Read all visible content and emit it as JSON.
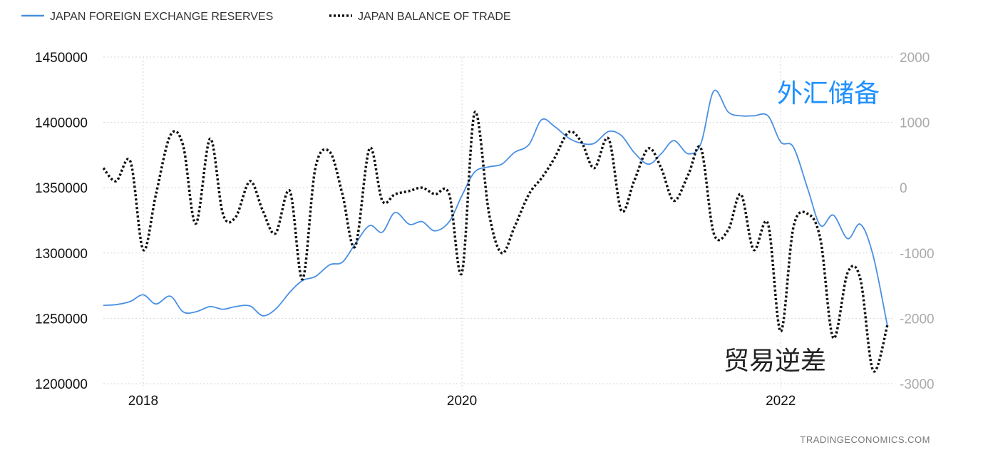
{
  "chart_data": {
    "type": "line",
    "legend": {
      "placement": "top-left",
      "entries": [
        "JAPAN FOREIGN EXCHANGE RESERVES",
        "JAPAN BALANCE OF TRADE"
      ]
    },
    "y_left": {
      "ticks": [
        "1450000",
        "1400000",
        "1350000",
        "1300000",
        "1250000",
        "1200000"
      ],
      "range": [
        1200000,
        1450000
      ]
    },
    "y_right": {
      "ticks": [
        "2000",
        "1000",
        "0",
        "-1000",
        "-2000",
        "-3000"
      ],
      "range": [
        -3000,
        2000
      ]
    },
    "x_ticks": [
      "2018",
      "2020",
      "2022"
    ],
    "x_range": [
      2017.75,
      2022.67
    ],
    "grid": true,
    "annotations": {
      "reserves": "外汇储备",
      "trade": "贸易逆差"
    },
    "source": "TRADINGECONOMICS.COM",
    "colors": {
      "reserves": "#4a90e2",
      "trade": "#111111",
      "annot_reserves": "#1e90ff",
      "annot_trade": "#222222"
    },
    "series": [
      {
        "name": "JAPAN FOREIGN EXCHANGE RESERVES",
        "axis": "left",
        "x": [
          2017.75,
          2017.83,
          2017.92,
          2018.0,
          2018.08,
          2018.17,
          2018.25,
          2018.33,
          2018.42,
          2018.5,
          2018.58,
          2018.67,
          2018.75,
          2018.83,
          2018.92,
          2019.0,
          2019.08,
          2019.17,
          2019.25,
          2019.33,
          2019.42,
          2019.5,
          2019.58,
          2019.67,
          2019.75,
          2019.83,
          2019.92,
          2020.0,
          2020.08,
          2020.17,
          2020.25,
          2020.33,
          2020.42,
          2020.5,
          2020.58,
          2020.67,
          2020.75,
          2020.83,
          2020.92,
          2021.0,
          2021.08,
          2021.17,
          2021.25,
          2021.33,
          2021.42,
          2021.5,
          2021.58,
          2021.67,
          2021.75,
          2021.83,
          2021.92,
          2022.0,
          2022.08,
          2022.17,
          2022.25,
          2022.33,
          2022.42,
          2022.5,
          2022.58,
          2022.67
        ],
        "values": [
          1260000,
          1260500,
          1263000,
          1268000,
          1261000,
          1267000,
          1255000,
          1255000,
          1259000,
          1257000,
          1259000,
          1259500,
          1252000,
          1257000,
          1270000,
          1279000,
          1282000,
          1291000,
          1293000,
          1307000,
          1321000,
          1316000,
          1331000,
          1322000,
          1324000,
          1317000,
          1324000,
          1344000,
          1362000,
          1366000,
          1368000,
          1377000,
          1383000,
          1402000,
          1397000,
          1388000,
          1384000,
          1384000,
          1393000,
          1390000,
          1377000,
          1368000,
          1376000,
          1386000,
          1376000,
          1384000,
          1424000,
          1408000,
          1405000,
          1405000,
          1405000,
          1385000,
          1381000,
          1349000,
          1321000,
          1329000,
          1311000,
          1322000,
          1298000,
          1244000
        ]
      },
      {
        "name": "JAPAN BALANCE OF TRADE",
        "axis": "right",
        "x": [
          2017.75,
          2017.83,
          2017.92,
          2018.0,
          2018.08,
          2018.17,
          2018.25,
          2018.33,
          2018.42,
          2018.5,
          2018.58,
          2018.67,
          2018.75,
          2018.83,
          2018.92,
          2019.0,
          2019.08,
          2019.17,
          2019.25,
          2019.33,
          2019.42,
          2019.5,
          2019.58,
          2019.67,
          2019.75,
          2019.83,
          2019.92,
          2020.0,
          2020.08,
          2020.17,
          2020.25,
          2020.33,
          2020.42,
          2020.5,
          2020.58,
          2020.67,
          2020.75,
          2020.83,
          2020.92,
          2021.0,
          2021.08,
          2021.17,
          2021.25,
          2021.33,
          2021.42,
          2021.5,
          2021.58,
          2021.67,
          2021.75,
          2021.83,
          2021.92,
          2022.0,
          2022.08,
          2022.17,
          2022.25,
          2022.33,
          2022.42,
          2022.5,
          2022.58,
          2022.67
        ],
        "values": [
          300,
          100,
          400,
          -950,
          -100,
          800,
          650,
          -550,
          750,
          -400,
          -450,
          100,
          -350,
          -700,
          -50,
          -1400,
          300,
          550,
          -100,
          -900,
          600,
          -200,
          -100,
          -50,
          0,
          -100,
          -100,
          -1300,
          1150,
          -400,
          -1000,
          -600,
          -100,
          150,
          450,
          850,
          700,
          300,
          750,
          -350,
          100,
          600,
          300,
          -200,
          200,
          600,
          -700,
          -650,
          -100,
          -950,
          -550,
          -2200,
          -600,
          -400,
          -800,
          -2300,
          -1300,
          -1400,
          -2800,
          -2100
        ]
      }
    ]
  }
}
